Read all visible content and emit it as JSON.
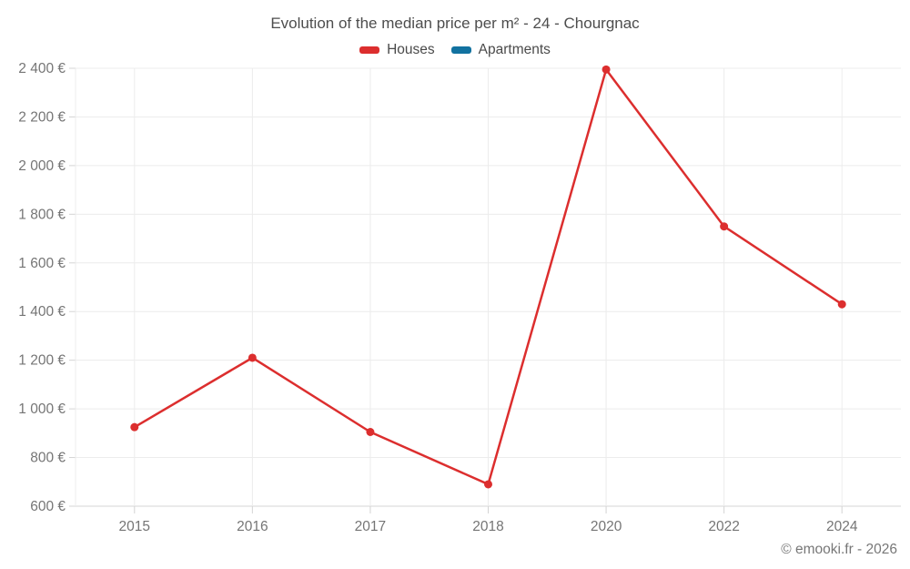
{
  "chart_data": {
    "type": "line",
    "title": "Evolution of the median price per m² - 24 - Chourgnac",
    "x": [
      "2015",
      "2016",
      "2017",
      "2018",
      "2020",
      "2022",
      "2024"
    ],
    "series": [
      {
        "name": "Houses",
        "color": "#dc2e2e",
        "values": [
          925,
          1210,
          905,
          690,
          2395,
          1750,
          1430
        ]
      },
      {
        "name": "Apartments",
        "color": "#1272a0",
        "values": []
      }
    ],
    "ylim": [
      600,
      2400
    ],
    "ytick_step": 200,
    "yticks": [
      {
        "v": 600,
        "label": "600 €"
      },
      {
        "v": 800,
        "label": "800 €"
      },
      {
        "v": 1000,
        "label": "1 000 €"
      },
      {
        "v": 1200,
        "label": "1 200 €"
      },
      {
        "v": 1400,
        "label": "1 400 €"
      },
      {
        "v": 1600,
        "label": "1 600 €"
      },
      {
        "v": 1800,
        "label": "1 800 €"
      },
      {
        "v": 2000,
        "label": "2 000 €"
      },
      {
        "v": 2200,
        "label": "2 200 €"
      },
      {
        "v": 2400,
        "label": "2 400 €"
      }
    ],
    "grid": true,
    "legend_position": "top"
  },
  "footer": {
    "text": "© emooki.fr - 2026"
  },
  "colors": {
    "grid": "#ececec",
    "axis": "#d4d4d4",
    "tick_text": "#757575",
    "title_text": "#4d4d4d",
    "legend_text": "#4a4a4a",
    "footer_text": "#777777",
    "background": "#ffffff",
    "houses": "#dc2e2e",
    "apartments": "#1272a0"
  }
}
